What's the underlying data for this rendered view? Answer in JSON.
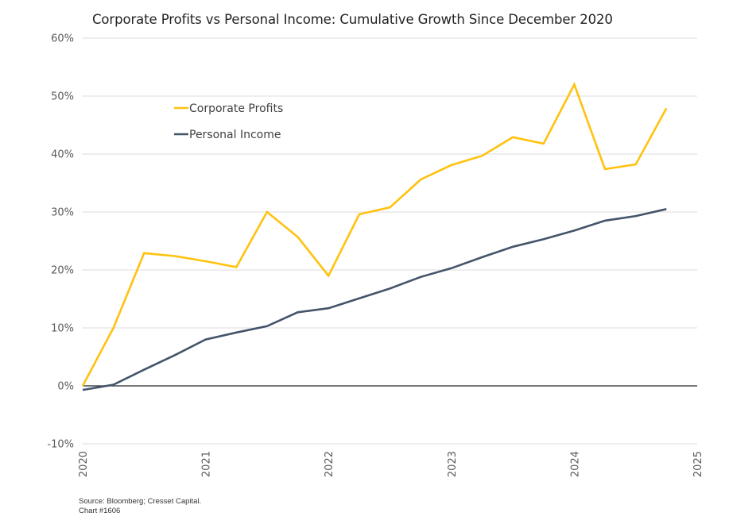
{
  "chart_data": {
    "type": "line",
    "title": "Corporate Profits vs Personal Income: Cumulative Growth Since December 2020",
    "xlabel": "",
    "ylabel": "",
    "ylim": [
      -10,
      60
    ],
    "xlim": [
      2020,
      2025
    ],
    "y_ticks": [
      "60%",
      "50%",
      "40%",
      "30%",
      "20%",
      "10%",
      "0%",
      "-10%"
    ],
    "y_tick_values": [
      60,
      50,
      40,
      30,
      20,
      10,
      0,
      -10
    ],
    "x_ticks": [
      "2020",
      "2021",
      "2022",
      "2023",
      "2024",
      "2025"
    ],
    "x_tick_values": [
      2020,
      2021,
      2022,
      2023,
      2024,
      2025
    ],
    "grid": true,
    "legend_position": "upper-left-inside",
    "x": [
      2020.0,
      2020.25,
      2020.5,
      2020.75,
      2021.0,
      2021.25,
      2021.5,
      2021.75,
      2022.0,
      2022.25,
      2022.5,
      2022.75,
      2023.0,
      2023.25,
      2023.5,
      2023.75,
      2024.0,
      2024.25,
      2024.5,
      2024.75
    ],
    "series": [
      {
        "name": "Corporate Profits",
        "color": "#FFC20E",
        "values": [
          0.0,
          10.0,
          22.9,
          22.4,
          21.5,
          20.5,
          30.0,
          25.7,
          19.0,
          29.6,
          30.8,
          35.6,
          38.1,
          39.7,
          42.9,
          41.8,
          52.0,
          37.4,
          38.2,
          47.9
        ]
      },
      {
        "name": "Personal Income",
        "color": "#44546A",
        "values": [
          -0.7,
          0.2,
          2.8,
          5.3,
          8.0,
          9.2,
          10.3,
          12.7,
          13.4,
          15.1,
          16.8,
          18.8,
          20.3,
          22.2,
          24.0,
          25.3,
          26.8,
          28.5,
          29.3,
          30.5
        ]
      }
    ]
  },
  "footer": {
    "source": "Source: Bloomberg; Cresset Capital.",
    "chart_id": "Chart #1606"
  }
}
